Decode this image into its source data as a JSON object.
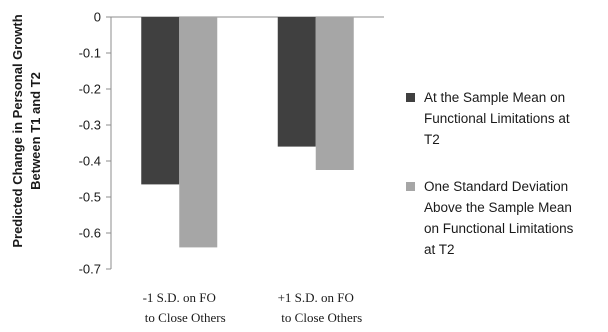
{
  "chart_data": {
    "type": "bar",
    "ylabel_lines": [
      "Predicted Change in Personal Growth",
      "Between T1 and T2"
    ],
    "categories": [
      [
        "-1 S.D. on FO",
        "to Close Others"
      ],
      [
        "+1 S.D. on FO",
        "to Close Others"
      ]
    ],
    "series": [
      {
        "name_lines": [
          "At the Sample Mean on",
          "Functional Limitations at",
          "T2"
        ],
        "color": "#404040",
        "values": [
          -0.465,
          -0.36
        ]
      },
      {
        "name_lines": [
          "One Standard Deviation",
          "Above the Sample Mean",
          "on Functional Limitations",
          "at T2"
        ],
        "color": "#a6a6a6",
        "values": [
          -0.64,
          -0.425
        ]
      }
    ],
    "ylim": [
      -0.7,
      0
    ],
    "yticks": [
      "0",
      "-0.1",
      "-0.2",
      "-0.3",
      "-0.4",
      "-0.5",
      "-0.6",
      "-0.7"
    ],
    "legend_position": "right",
    "grid": false
  }
}
